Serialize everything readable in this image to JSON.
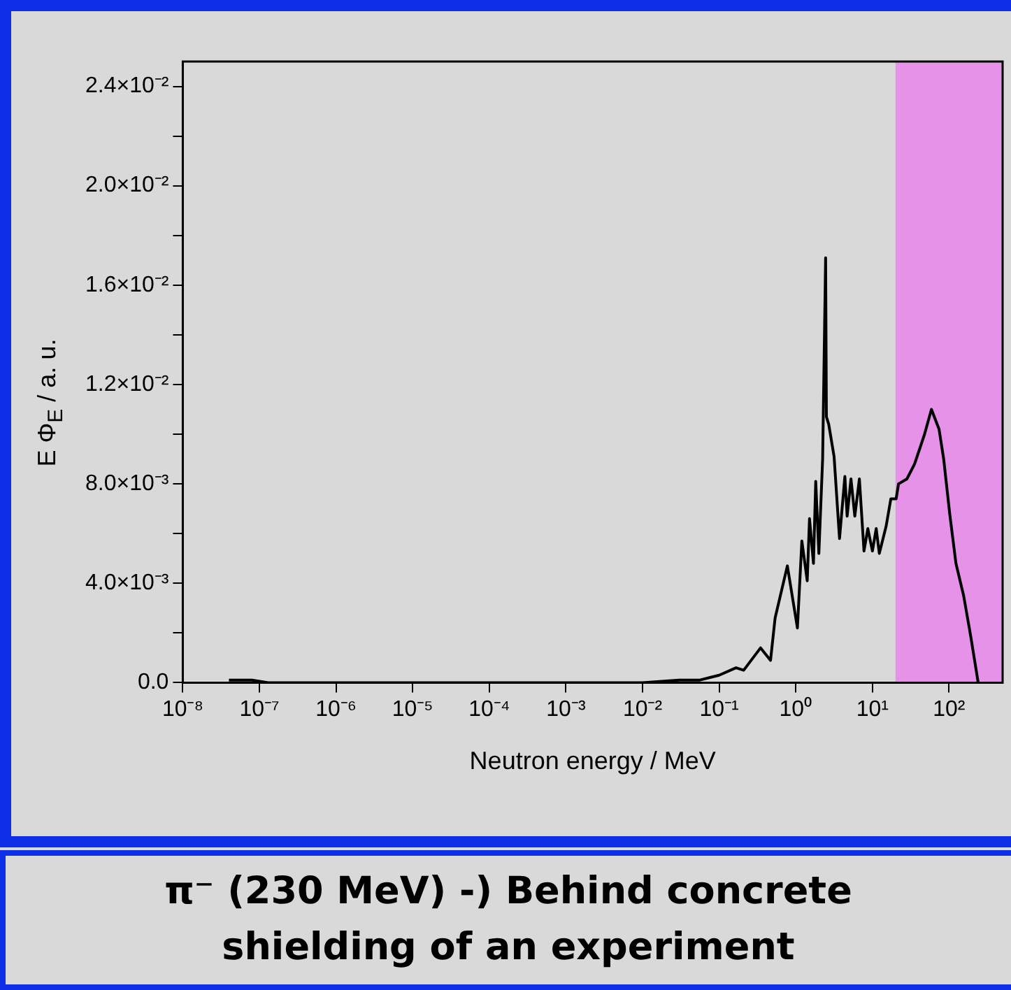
{
  "chart_data": {
    "type": "line",
    "title": "π⁻ (230 MeV) -) Behind concrete shielding of an experiment",
    "xlabel": "Neutron energy / MeV",
    "ylabel": "E Φ$_{E}$ / a. u.",
    "log": "x",
    "grid": false,
    "legend": false,
    "marker": "none",
    "line_style": "solid",
    "xlim": [
      1e-08,
      500
    ],
    "ylim": [
      0,
      0.025
    ],
    "xticks": [
      {
        "value": 1e-08,
        "label": "10⁻⁸"
      },
      {
        "value": 1e-07,
        "label": "10⁻⁷"
      },
      {
        "value": 1e-06,
        "label": "10⁻⁶"
      },
      {
        "value": 1e-05,
        "label": "10⁻⁵"
      },
      {
        "value": 0.0001,
        "label": "10⁻⁴"
      },
      {
        "value": 0.001,
        "label": "10⁻³"
      },
      {
        "value": 0.01,
        "label": "10⁻²"
      },
      {
        "value": 0.1,
        "label": "10⁻¹"
      },
      {
        "value": 1,
        "label": "10⁰"
      },
      {
        "value": 10,
        "label": "10¹"
      },
      {
        "value": 100,
        "label": "10²"
      }
    ],
    "yticks": [
      {
        "value": 0,
        "label": "0.0"
      },
      {
        "value": 0.002,
        "label": null
      },
      {
        "value": 0.004,
        "label": "4.0×10⁻³"
      },
      {
        "value": 0.006,
        "label": null
      },
      {
        "value": 0.008,
        "label": "8.0×10⁻³"
      },
      {
        "value": 0.01,
        "label": null
      },
      {
        "value": 0.012,
        "label": "1.2×10⁻²"
      },
      {
        "value": 0.014,
        "label": null
      },
      {
        "value": 0.016,
        "label": "1.6×10⁻²"
      },
      {
        "value": 0.018,
        "label": null
      },
      {
        "value": 0.02,
        "label": "2.0×10⁻²"
      },
      {
        "value": 0.022,
        "label": null
      },
      {
        "value": 0.024,
        "label": "2.4×10⁻²"
      }
    ],
    "bands": [
      {
        "axis": "x",
        "from": 20,
        "to": 500,
        "color": "#e592e8"
      }
    ],
    "series": [
      {
        "color": "#000000",
        "x": [
          4e-08,
          8e-08,
          1.3e-07,
          1e-06,
          0.0001,
          0.01,
          0.03,
          0.055,
          0.1,
          0.166,
          0.209,
          0.347,
          0.468,
          0.537,
          0.776,
          1.05,
          1.2,
          1.41,
          1.51,
          1.7,
          1.82,
          2.0,
          2.24,
          2.45,
          2.51,
          2.69,
          3.16,
          3.72,
          4.37,
          4.68,
          5.25,
          5.89,
          6.76,
          7.76,
          8.71,
          10,
          11.2,
          12.3,
          15.1,
          17.4,
          20.4,
          21.9,
          28.2,
          35.5,
          47.9,
          58.9,
          74.1,
          85.1,
          102,
          123,
          155,
          191,
          240
        ],
        "values": [
          0.0001,
          0.0001,
          0,
          0,
          0,
          0,
          0.0001,
          0.0001,
          0.0003,
          0.0006,
          0.0005,
          0.0014,
          0.0009,
          0.0026,
          0.0047,
          0.0022,
          0.0057,
          0.0041,
          0.0066,
          0.0048,
          0.0081,
          0.0052,
          0.009,
          0.0171,
          0.0107,
          0.0104,
          0.0091,
          0.0058,
          0.0083,
          0.0067,
          0.0082,
          0.0067,
          0.0082,
          0.0053,
          0.0062,
          0.0053,
          0.0062,
          0.0052,
          0.0063,
          0.0074,
          0.0074,
          0.008,
          0.0082,
          0.0088,
          0.01,
          0.011,
          0.0102,
          0.009,
          0.0068,
          0.0048,
          0.0035,
          0.0019,
          0
        ]
      }
    ]
  }
}
